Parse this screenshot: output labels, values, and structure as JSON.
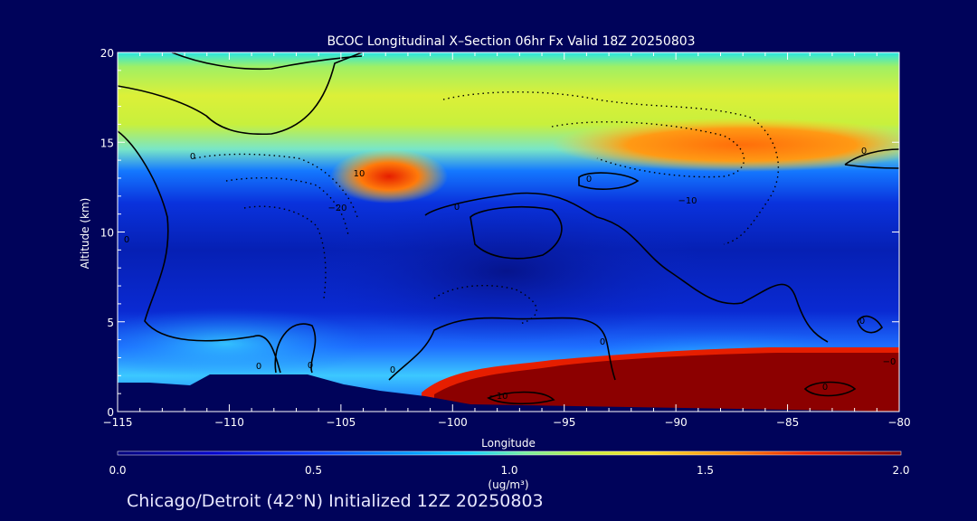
{
  "chart_data": {
    "type": "heatmap",
    "title": "BCOC Longitudinal X–Section 06hr  Fx Valid 18Z 20250803",
    "xlabel": "Longitude",
    "ylabel": "Altitude (km)",
    "xlim": [
      -115,
      -80
    ],
    "ylim": [
      0,
      20
    ],
    "x_ticks": [
      -115,
      -110,
      -105,
      -100,
      -95,
      -90,
      -85,
      -80
    ],
    "x_tick_labels": [
      "−115",
      "−110",
      "−105",
      "−100",
      "−95",
      "−90",
      "−85",
      "−80"
    ],
    "y_ticks": [
      0,
      5,
      10,
      15,
      20
    ],
    "y_tick_labels": [
      "0",
      "5",
      "10",
      "15",
      "20"
    ],
    "colorbar": {
      "min": 0.0,
      "max": 2.0,
      "ticks": [
        0.0,
        0.5,
        1.0,
        1.5,
        2.0
      ],
      "tick_labels": [
        "0.0",
        "0.5",
        "1.0",
        "1.5",
        "2.0"
      ],
      "unit_label": "(ug/m³)"
    },
    "contour_labels": [
      "0",
      "0",
      "0",
      "0",
      "0",
      "0",
      "0",
      "0",
      "0",
      "0",
      "10",
      "−10",
      "−20",
      "0",
      "−10",
      "−0"
    ],
    "features": {
      "surface_high_region": {
        "lon_range": [
          -99,
          -80
        ],
        "alt_range": [
          0,
          3.5
        ],
        "value": 2.0
      },
      "upper_band": {
        "lon_range": [
          -115,
          -80
        ],
        "alt_range": [
          14,
          20
        ],
        "value": 1.1
      },
      "local_max": {
        "lon": -103,
        "alt": 13,
        "value": 1.6
      },
      "upper_right_max": {
        "lon_range": [
          -93,
          -80
        ],
        "alt_range": [
          14,
          16
        ],
        "value": 1.5
      }
    }
  },
  "footer": "Chicago/Detroit (42°N) Initialized 12Z 20250803"
}
